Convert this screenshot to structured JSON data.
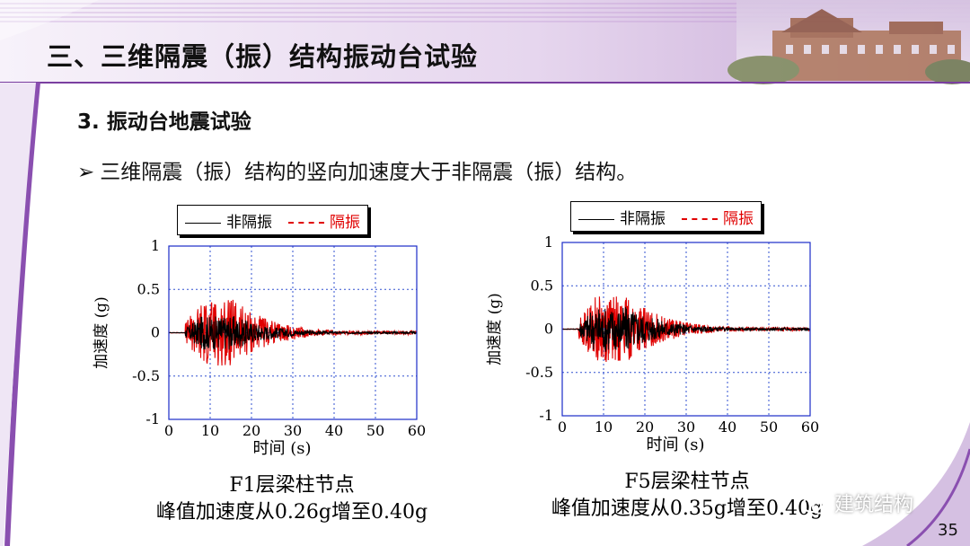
{
  "slide": {
    "title": "三、三维隔震（振）结构振动台试验",
    "subheading": "3. 振动台地震试验",
    "bullet_marker": "➢",
    "bullet": "三维隔震（振）结构的竖向加速度大于非隔震（振）结构。",
    "page_number": "35",
    "watermark": "建筑结构"
  },
  "colors": {
    "non_isolated": "#000000",
    "isolated": "#e00000",
    "accent": "#8a4fb0"
  },
  "charts": [
    {
      "legend": {
        "non_isolated": "非隔振",
        "isolated": "隔振"
      },
      "xlabel": "时间 (s)",
      "ylabel": "加速度 (g)",
      "xticks": [
        "0",
        "10",
        "20",
        "30",
        "40",
        "50",
        "60"
      ],
      "yticks": [
        "1",
        "0.5",
        "0",
        "-0.5",
        "-1"
      ],
      "caption_line1": "F1层梁柱节点",
      "caption_line2": "峰值加速度从0.26g增至0.40g"
    },
    {
      "legend": {
        "non_isolated": "非隔振",
        "isolated": "隔振"
      },
      "xlabel": "时间 (s)",
      "ylabel": "加速度 (g)",
      "xticks": [
        "0",
        "10",
        "20",
        "30",
        "40",
        "50",
        "60"
      ],
      "yticks": [
        "1",
        "0.5",
        "0",
        "-0.5",
        "-1"
      ],
      "caption_line1": "F5层梁柱节点",
      "caption_line2": "峰值加速度从0.35g增至0.40g"
    }
  ],
  "chart_data": [
    {
      "type": "line",
      "title": "",
      "xlabel": "时间 (s)",
      "ylabel": "加速度 (g)",
      "xlim": [
        0,
        60
      ],
      "ylim": [
        -1,
        1
      ],
      "grid": true,
      "legend_position": "top",
      "series": [
        {
          "name": "非隔振",
          "peak": 0.26,
          "color": "#000000",
          "style": "solid"
        },
        {
          "name": "隔振",
          "peak": 0.4,
          "color": "#e00000",
          "style": "dashed"
        }
      ]
    },
    {
      "type": "line",
      "title": "",
      "xlabel": "时间 (s)",
      "ylabel": "加速度 (g)",
      "xlim": [
        0,
        60
      ],
      "ylim": [
        -1,
        1
      ],
      "grid": true,
      "legend_position": "top",
      "series": [
        {
          "name": "非隔振",
          "peak": 0.35,
          "color": "#000000",
          "style": "solid"
        },
        {
          "name": "隔振",
          "peak": 0.4,
          "color": "#e00000",
          "style": "dashed"
        }
      ]
    }
  ]
}
